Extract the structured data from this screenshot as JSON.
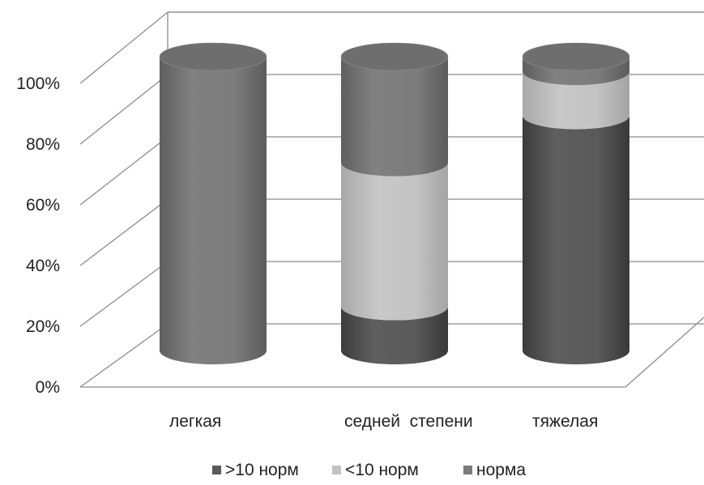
{
  "chart_data": {
    "type": "bar",
    "style": "3d-cylinder-stacked-100",
    "categories": [
      "легкая",
      "седней  степени",
      "тяжелая"
    ],
    "series": [
      {
        "name": ">10 норм",
        "color": "#5a5a5a",
        "values": [
          0,
          15,
          80
        ]
      },
      {
        "name": "<10 норм",
        "color": "#c2c2c2",
        "values": [
          0,
          49,
          15
        ]
      },
      {
        "name": "норма",
        "color": "#7b7b7b",
        "values": [
          100,
          36,
          5
        ]
      }
    ],
    "yticks": [
      "0%",
      "20%",
      "40%",
      "60%",
      "80%",
      "100%"
    ],
    "ylim": [
      0,
      100
    ],
    "grid": true,
    "legend_position": "bottom"
  }
}
